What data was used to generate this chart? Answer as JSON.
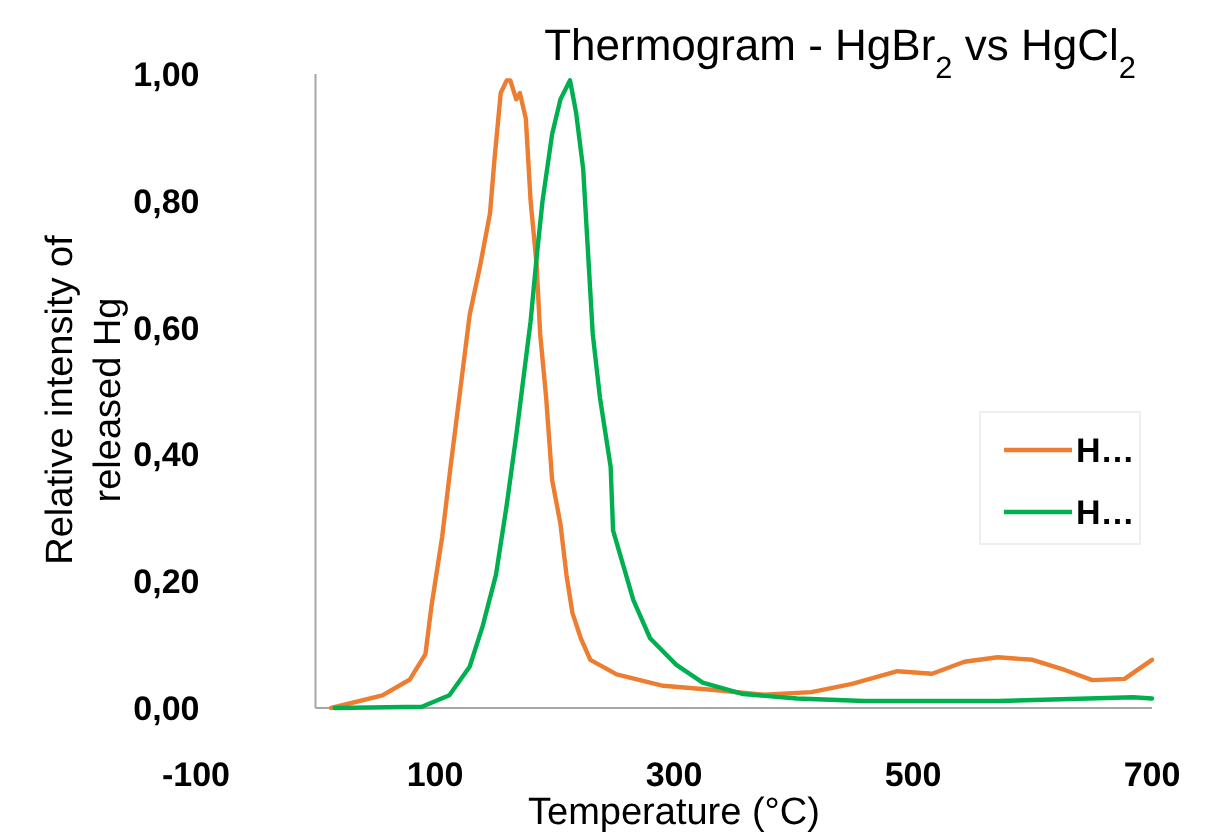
{
  "chart_data": {
    "type": "line",
    "title": "Thermogram - HgBr$_{2}$ vs HgCl$_{2}$",
    "xlabel": "Temperature (°C)",
    "ylabel": "Relative intensity of released Hg",
    "xlim": [
      -100,
      700
    ],
    "xticks": [
      -100,
      100,
      300,
      500,
      700
    ],
    "ylim": [
      0,
      1
    ],
    "yticks": [
      {
        "value": 0,
        "label": "0,00"
      },
      {
        "value": 0.2,
        "label": "0,20"
      },
      {
        "value": 0.4,
        "label": "0,40"
      },
      {
        "value": 0.6,
        "label": "0,60"
      },
      {
        "value": 0.8,
        "label": "0,80"
      },
      {
        "value": 1,
        "label": "1,00"
      }
    ],
    "grid": false,
    "legend": "right",
    "marker": "none",
    "line_style": "solid",
    "series": [
      {
        "name": "H…",
        "color": "#ed7d31",
        "x": [
          13,
          56,
          79,
          92,
          97,
          106,
          113,
          121,
          129,
          138,
          146,
          150,
          155,
          160,
          163,
          168,
          171,
          176,
          180,
          185,
          188,
          193,
          198,
          205,
          210,
          215,
          222,
          230,
          252,
          291,
          336,
          375,
          415,
          449,
          487,
          516,
          543,
          571,
          600,
          627,
          650,
          677,
          700
        ],
        "values": [
          0,
          0.02,
          0.045,
          0.085,
          0.16,
          0.27,
          0.38,
          0.5,
          0.62,
          0.7,
          0.78,
          0.87,
          0.97,
          0.99,
          0.99,
          0.96,
          0.97,
          0.93,
          0.8,
          0.7,
          0.59,
          0.49,
          0.36,
          0.29,
          0.21,
          0.15,
          0.11,
          0.076,
          0.053,
          0.035,
          0.028,
          0.021,
          0.025,
          0.038,
          0.058,
          0.054,
          0.073,
          0.08,
          0.076,
          0.06,
          0.044,
          0.046,
          0.076
        ]
      },
      {
        "name": "H…",
        "color": "#00b050",
        "x": [
          16,
          89,
          112,
          129,
          140,
          151,
          160,
          168,
          174,
          180,
          185,
          190,
          198,
          205,
          213,
          218,
          224,
          232,
          238,
          247,
          249,
          266,
          280,
          302,
          324,
          358,
          403,
          459,
          571,
          684,
          700
        ],
        "values": [
          0,
          0.002,
          0.02,
          0.065,
          0.13,
          0.21,
          0.32,
          0.43,
          0.52,
          0.61,
          0.71,
          0.8,
          0.905,
          0.96,
          0.99,
          0.94,
          0.85,
          0.59,
          0.49,
          0.38,
          0.28,
          0.17,
          0.11,
          0.068,
          0.04,
          0.022,
          0.015,
          0.011,
          0.011,
          0.017,
          0.015
        ]
      }
    ]
  }
}
